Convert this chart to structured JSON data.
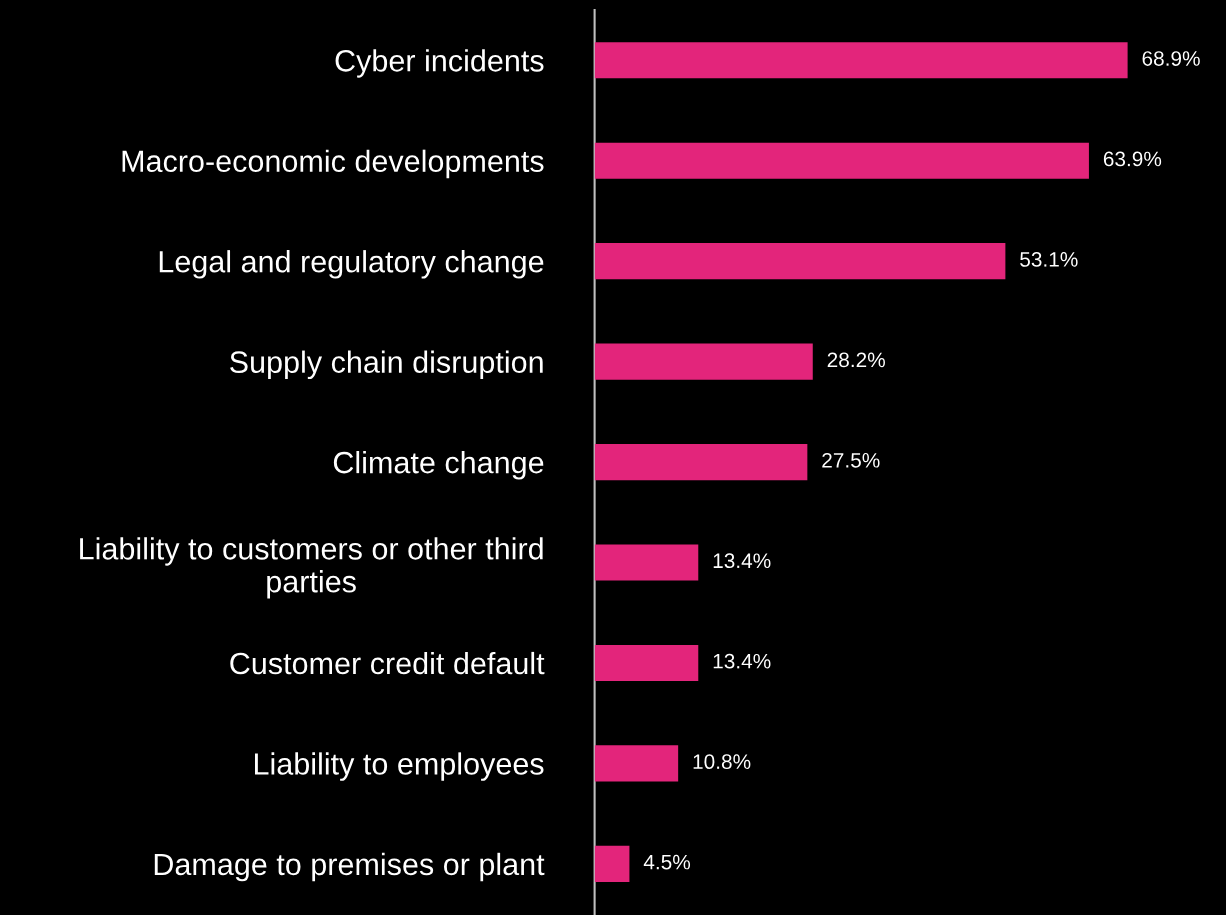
{
  "chart_data": {
    "type": "bar",
    "orientation": "horizontal",
    "categories": [
      "Cyber incidents",
      "Macro-economic developments",
      "Legal and regulatory change",
      "Supply chain disruption",
      "Climate change",
      "Liability to customers or other third\nparties",
      "Customer credit default",
      "Liability to employees",
      "Damage to premises or plant"
    ],
    "values": [
      68.9,
      63.9,
      53.1,
      28.2,
      27.5,
      13.4,
      13.4,
      10.8,
      4.5
    ],
    "value_labels": [
      "68.9%",
      "63.9%",
      "53.1%",
      "28.2%",
      "27.5%",
      "13.4%",
      "13.4%",
      "10.8%",
      "4.5%"
    ],
    "color": "#e3257b",
    "tick_labels": "y",
    "grid": false,
    "legend": false
  }
}
